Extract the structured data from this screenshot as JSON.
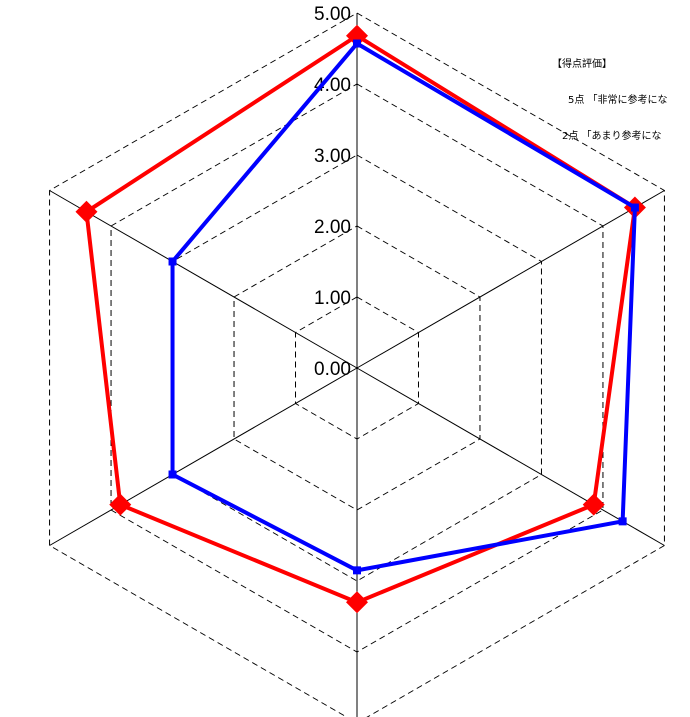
{
  "chart_data": {
    "type": "radar",
    "axes_count": 6,
    "rmin": 0,
    "rmax": 5,
    "tick_step": 1,
    "tick_labels": [
      "0.00",
      "1.00",
      "2.00",
      "3.00",
      "4.00",
      "5.00"
    ],
    "grid": "dashed",
    "series": [
      {
        "values": [
          4.68,
          4.52,
          3.85,
          3.3,
          3.85,
          4.4
        ],
        "color": "#ff0000",
        "marker": "diamond"
      },
      {
        "values": [
          4.57,
          4.52,
          4.32,
          2.85,
          3.0,
          3.0
        ],
        "color": "#0000ff",
        "marker": "square"
      }
    ]
  },
  "legend_note": {
    "heading": "【得点評価】",
    "lines": [
      "5点 「非常に参考にな",
      "2点 「あまり参考にな"
    ]
  }
}
